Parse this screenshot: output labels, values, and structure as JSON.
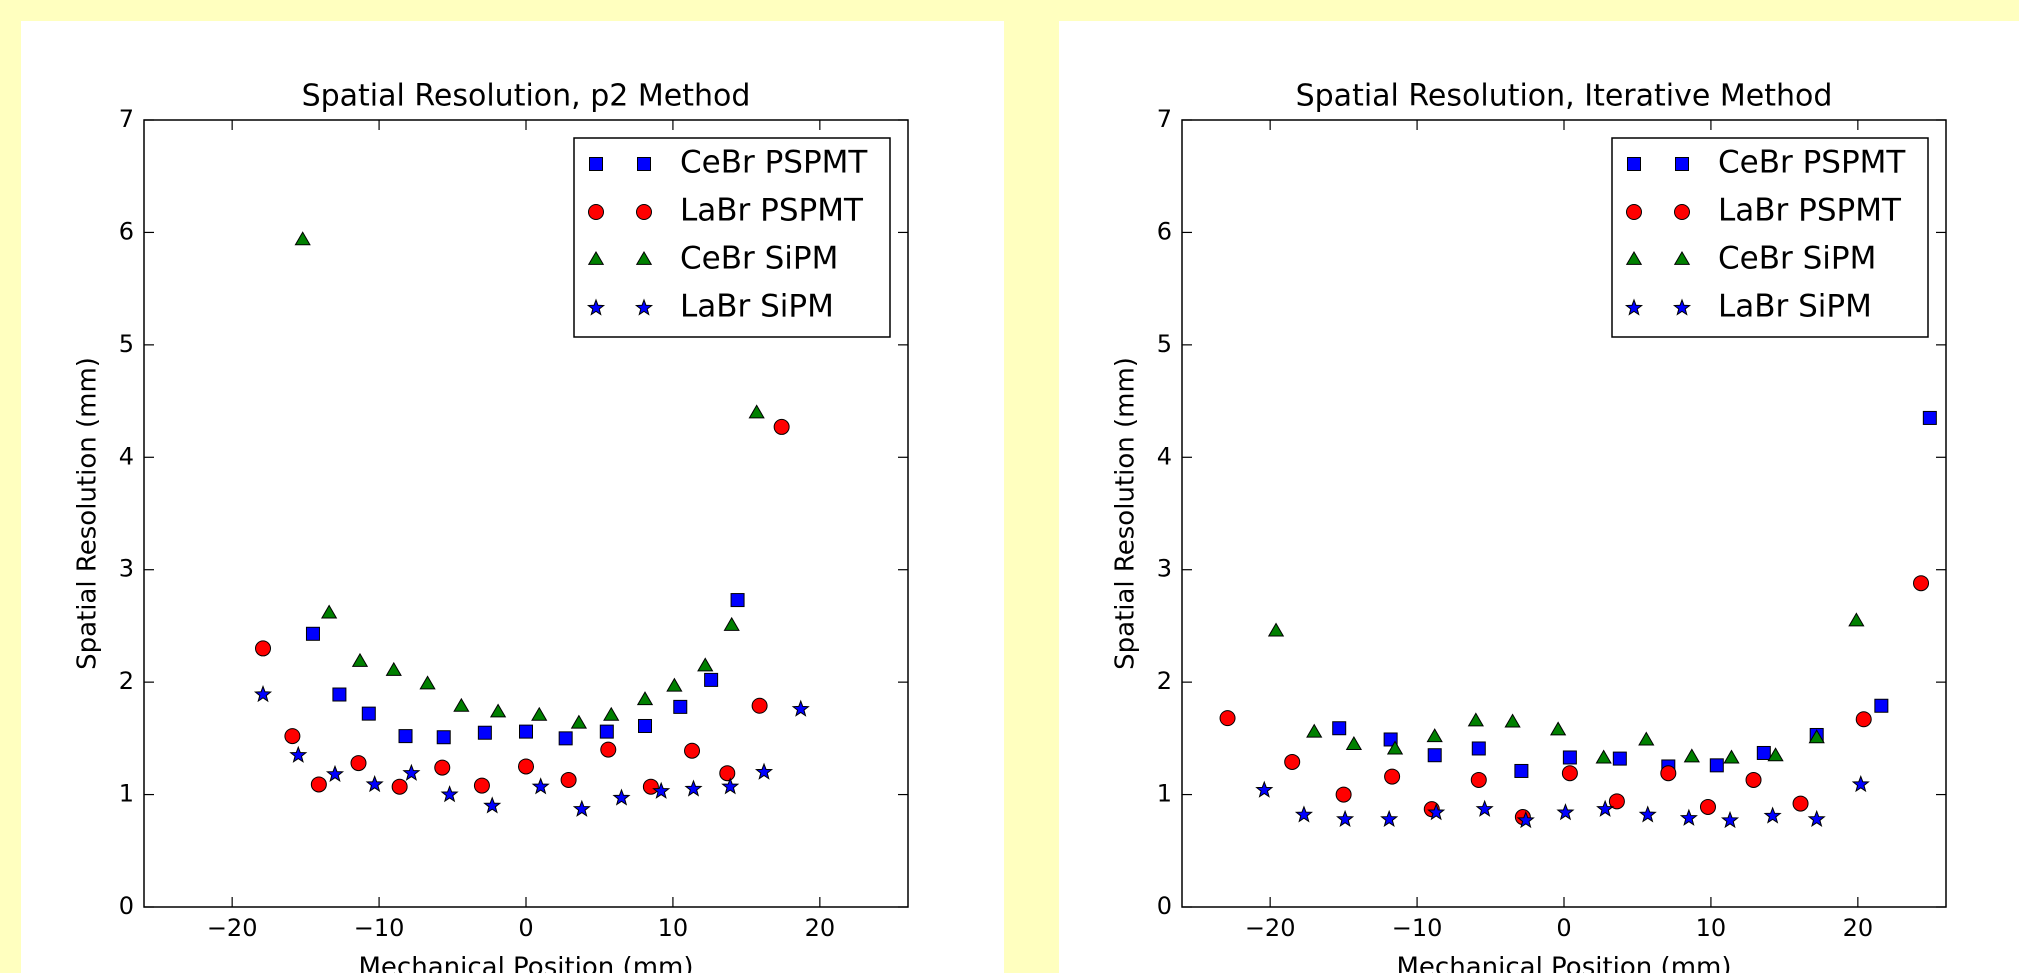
{
  "chart_data": [
    {
      "type": "scatter",
      "title": "Spatial Resolution, p2 Method",
      "x_label": "Mechanical Position (mm)",
      "y_label": "Spatial Resolution (mm)",
      "xlim": [
        -26,
        26
      ],
      "ylim": [
        0,
        7
      ],
      "xticks": [
        {
          "value": -20,
          "label": "−20"
        },
        {
          "value": -10,
          "label": "−10"
        },
        0,
        10,
        20
      ],
      "yticks": [
        0,
        1,
        2,
        3,
        4,
        5,
        6,
        7
      ],
      "legend": "upper right",
      "series": [
        {
          "name": "CeBr PSPMT",
          "color": "#0000ff",
          "marker": "square",
          "x": [
            -14.5,
            -12.7,
            -10.7,
            -8.2,
            -5.6,
            -2.8,
            0,
            2.7,
            5.5,
            8.1,
            10.5,
            12.6,
            14.4
          ],
          "values": [
            2.43,
            1.89,
            1.72,
            1.52,
            1.51,
            1.55,
            1.56,
            1.5,
            1.56,
            1.61,
            1.78,
            2.02,
            2.73
          ]
        },
        {
          "name": "LaBr PSPMT",
          "color": "#ff0000",
          "marker": "circle",
          "x": [
            -17.9,
            -15.9,
            -14.1,
            -11.4,
            -8.6,
            -5.7,
            -3.0,
            0,
            2.9,
            5.6,
            8.5,
            11.3,
            13.7,
            15.9,
            17.4
          ],
          "values": [
            2.3,
            1.52,
            1.09,
            1.28,
            1.07,
            1.24,
            1.08,
            1.25,
            1.13,
            1.4,
            1.07,
            1.39,
            1.19,
            1.79,
            4.27
          ]
        },
        {
          "name": "CeBr SiPM",
          "color": "#008000",
          "marker": "triangle",
          "x": [
            -15.2,
            -13.4,
            -11.3,
            -9.0,
            -6.7,
            -4.4,
            -1.9,
            0.9,
            3.6,
            5.8,
            8.1,
            10.1,
            12.2,
            14.0,
            15.7
          ],
          "values": [
            5.93,
            2.61,
            2.18,
            2.1,
            1.98,
            1.78,
            1.73,
            1.7,
            1.63,
            1.7,
            1.84,
            1.96,
            2.14,
            2.5,
            4.39
          ]
        },
        {
          "name": "LaBr SiPM",
          "color": "#0000ff",
          "marker": "star",
          "x": [
            -17.9,
            -15.5,
            -13.0,
            -10.3,
            -7.8,
            -5.2,
            -2.3,
            1.0,
            3.8,
            6.5,
            9.2,
            11.4,
            13.9,
            16.2,
            18.7
          ],
          "values": [
            1.89,
            1.35,
            1.18,
            1.09,
            1.19,
            1.0,
            0.9,
            1.07,
            0.87,
            0.97,
            1.03,
            1.05,
            1.07,
            1.2,
            1.76
          ]
        }
      ]
    },
    {
      "type": "scatter",
      "title": "Spatial Resolution, Iterative Method",
      "x_label": "Mechanical Position (mm)",
      "y_label": "Spatial Resolution (mm)",
      "xlim": [
        -26,
        26
      ],
      "ylim": [
        0,
        7
      ],
      "xticks": [
        {
          "value": -20,
          "label": "−20"
        },
        {
          "value": -10,
          "label": "−10"
        },
        0,
        10,
        20
      ],
      "yticks": [
        0,
        1,
        2,
        3,
        4,
        5,
        6,
        7
      ],
      "legend": "upper right",
      "series": [
        {
          "name": "CeBr PSPMT",
          "color": "#0000ff",
          "marker": "square",
          "x": [
            -15.3,
            -11.8,
            -8.8,
            -5.8,
            -2.9,
            0.4,
            3.8,
            7.1,
            10.4,
            13.6,
            17.2,
            21.6,
            24.9
          ],
          "values": [
            1.59,
            1.49,
            1.35,
            1.41,
            1.21,
            1.33,
            1.32,
            1.25,
            1.26,
            1.37,
            1.53,
            1.79,
            4.35
          ]
        },
        {
          "name": "LaBr PSPMT",
          "color": "#ff0000",
          "marker": "circle",
          "x": [
            -22.9,
            -18.5,
            -15.0,
            -11.7,
            -9.0,
            -5.8,
            -2.8,
            0.4,
            3.6,
            7.1,
            9.8,
            12.9,
            16.1,
            20.4,
            24.3
          ],
          "values": [
            1.68,
            1.29,
            1.0,
            1.16,
            0.87,
            1.13,
            0.8,
            1.19,
            0.94,
            1.19,
            0.89,
            1.13,
            0.92,
            1.67,
            2.88
          ]
        },
        {
          "name": "CeBr SiPM",
          "color": "#008000",
          "marker": "triangle",
          "x": [
            -19.6,
            -17.0,
            -14.3,
            -11.5,
            -8.8,
            -6.0,
            -3.5,
            -0.4,
            2.7,
            5.6,
            8.7,
            11.4,
            14.4,
            17.2,
            19.9
          ],
          "values": [
            2.45,
            1.55,
            1.44,
            1.4,
            1.51,
            1.65,
            1.64,
            1.57,
            1.32,
            1.48,
            1.33,
            1.32,
            1.34,
            1.5,
            2.54
          ]
        },
        {
          "name": "LaBr SiPM",
          "color": "#0000ff",
          "marker": "star",
          "x": [
            -20.4,
            -17.7,
            -14.9,
            -11.9,
            -8.7,
            -5.4,
            -2.6,
            0.1,
            2.8,
            5.7,
            8.5,
            11.3,
            14.2,
            17.2,
            20.2
          ],
          "values": [
            1.04,
            0.82,
            0.78,
            0.78,
            0.84,
            0.87,
            0.77,
            0.84,
            0.87,
            0.82,
            0.79,
            0.77,
            0.81,
            0.78,
            1.09
          ]
        }
      ]
    }
  ]
}
